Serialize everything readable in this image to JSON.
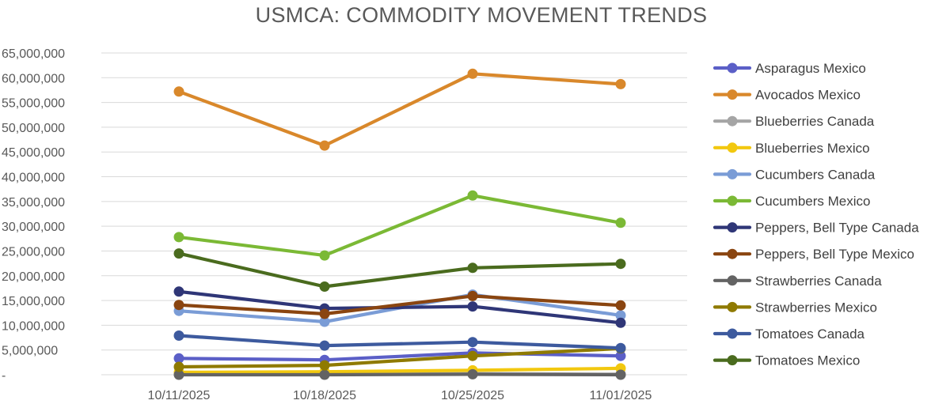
{
  "chart_data": {
    "type": "line",
    "title": "USMCA: COMMODITY MOVEMENT TRENDS",
    "xlabel": "",
    "ylabel": "",
    "categories": [
      "10/11/2025",
      "10/18/2025",
      "10/25/2025",
      "11/01/2025"
    ],
    "ylim": [
      0,
      65000000
    ],
    "yticks": [
      {
        "value": 0,
        "label": "-"
      },
      {
        "value": 5000000,
        "label": "5,000,000"
      },
      {
        "value": 10000000,
        "label": "10,000,000"
      },
      {
        "value": 15000000,
        "label": "15,000,000"
      },
      {
        "value": 20000000,
        "label": "20,000,000"
      },
      {
        "value": 25000000,
        "label": "25,000,000"
      },
      {
        "value": 30000000,
        "label": "30,000,000"
      },
      {
        "value": 35000000,
        "label": "35,000,000"
      },
      {
        "value": 40000000,
        "label": "40,000,000"
      },
      {
        "value": 45000000,
        "label": "45,000,000"
      },
      {
        "value": 50000000,
        "label": "50,000,000"
      },
      {
        "value": 55000000,
        "label": "55,000,000"
      },
      {
        "value": 60000000,
        "label": "60,000,000"
      },
      {
        "value": 65000000,
        "label": "65,000,000"
      }
    ],
    "grid": true,
    "legend_position": "right",
    "series": [
      {
        "name": "Asparagus Mexico",
        "color": "#5b5fc7",
        "values": [
          3300000,
          3000000,
          4400000,
          3800000
        ]
      },
      {
        "name": "Avocados Mexico",
        "color": "#d9882b",
        "values": [
          57200000,
          46300000,
          60800000,
          58700000
        ]
      },
      {
        "name": "Blueberries Canada",
        "color": "#a5a5a5",
        "values": [
          100000,
          100000,
          200000,
          100000
        ]
      },
      {
        "name": "Blueberries Mexico",
        "color": "#f2c80f",
        "values": [
          500000,
          600000,
          900000,
          1300000
        ]
      },
      {
        "name": "Cucumbers Canada",
        "color": "#7a9cd6",
        "values": [
          12900000,
          10700000,
          16200000,
          12000000
        ]
      },
      {
        "name": "Cucumbers Mexico",
        "color": "#7bb935",
        "values": [
          27800000,
          24100000,
          36200000,
          30700000
        ]
      },
      {
        "name": "Peppers, Bell Type Canada",
        "color": "#2f3677",
        "values": [
          16800000,
          13400000,
          13800000,
          10500000
        ]
      },
      {
        "name": "Peppers, Bell Type Mexico",
        "color": "#8a4510",
        "values": [
          14100000,
          12300000,
          15900000,
          14000000
        ]
      },
      {
        "name": "Strawberries Canada",
        "color": "#636363",
        "values": [
          0,
          0,
          100000,
          0
        ]
      },
      {
        "name": "Strawberries Mexico",
        "color": "#8f7a00",
        "values": [
          1600000,
          1900000,
          3800000,
          5300000
        ]
      },
      {
        "name": "Tomatoes Canada",
        "color": "#3d5a9e",
        "values": [
          7900000,
          5900000,
          6600000,
          5400000
        ]
      },
      {
        "name": "Tomatoes Mexico",
        "color": "#4a6b1e",
        "values": [
          24500000,
          17800000,
          21600000,
          22400000
        ]
      }
    ]
  }
}
